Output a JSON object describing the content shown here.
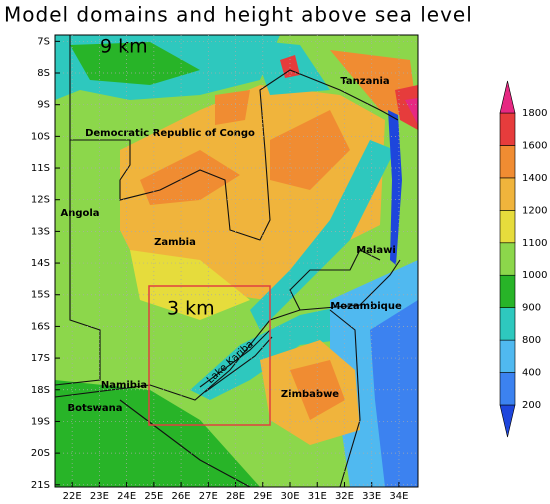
{
  "title": "Model domains and height above sea level",
  "map": {
    "domain_labels": [
      "9 km",
      "3 km"
    ],
    "place_labels": [
      "Tanzania",
      "Democratic Republic of Congo",
      "Angola",
      "Zambia",
      "Malawi",
      "Mozambique",
      "Namibia",
      "Botswana",
      "Zimbabwe"
    ],
    "lake_label": "Lake Kariba",
    "lonlim": [
      21.37,
      34.7
    ],
    "latlim": [
      -21.07,
      -6.8
    ],
    "lon_ticks": [
      {
        "value": 22,
        "label": "22E"
      },
      {
        "value": 23,
        "label": "23E"
      },
      {
        "value": 24,
        "label": "24E"
      },
      {
        "value": 25,
        "label": "25E"
      },
      {
        "value": 26,
        "label": "26E"
      },
      {
        "value": 27,
        "label": "27E"
      },
      {
        "value": 28,
        "label": "28E"
      },
      {
        "value": 29,
        "label": "29E"
      },
      {
        "value": 30,
        "label": "30E"
      },
      {
        "value": 31,
        "label": "31E"
      },
      {
        "value": 32,
        "label": "32E"
      },
      {
        "value": 33,
        "label": "33E"
      },
      {
        "value": 34,
        "label": "34E"
      }
    ],
    "lat_ticks": [
      {
        "value": -7,
        "label": "7S"
      },
      {
        "value": -8,
        "label": "8S"
      },
      {
        "value": -9,
        "label": "9S"
      },
      {
        "value": -10,
        "label": "10S"
      },
      {
        "value": -11,
        "label": "11S"
      },
      {
        "value": -12,
        "label": "12S"
      },
      {
        "value": -13,
        "label": "13S"
      },
      {
        "value": -14,
        "label": "14S"
      },
      {
        "value": -15,
        "label": "15S"
      },
      {
        "value": -16,
        "label": "16S"
      },
      {
        "value": -17,
        "label": "17S"
      },
      {
        "value": -18,
        "label": "18S"
      },
      {
        "value": -19,
        "label": "19S"
      },
      {
        "value": -20,
        "label": "20S"
      },
      {
        "value": -21,
        "label": "21S"
      }
    ],
    "grid": true
  },
  "colorbar": {
    "levels": [
      200,
      400,
      800,
      900,
      1000,
      1100,
      1200,
      1400,
      1600,
      1800
    ],
    "colors": [
      "#1e46dc",
      "#3c82f0",
      "#50b9f0",
      "#2ec8be",
      "#28b428",
      "#8cd74b",
      "#e6dc3c",
      "#f0b43c",
      "#f08c32",
      "#e63c3c",
      "#e62882"
    ]
  }
}
